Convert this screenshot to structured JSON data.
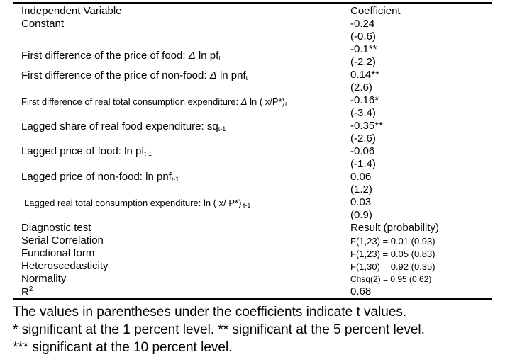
{
  "header": {
    "variable": "Independent Variable",
    "coefficient": "Coefficient"
  },
  "rows": [
    {
      "label": "Constant",
      "coef": "-0.24",
      "t": "(-0.6)"
    },
    {
      "label_pre": "First difference of the price of food: ",
      "op": "Δ",
      "label_mid": " ln pf",
      "sub": "t",
      "coef": "-0.1**",
      "t": "(-2.2)"
    },
    {
      "label_pre": "First difference of the price of non-food: ",
      "op": "Δ",
      "label_mid": "  ln pnf",
      "sub": "t",
      "coef": "0.14**",
      "t": "(2.6)"
    },
    {
      "label_pre": "First difference of real total consumption expenditure: ",
      "op": "Δ",
      "label_mid": "  ln ( x/P*)",
      "sub": "t",
      "coef": "-0.16*",
      "t": "(-3.4)"
    },
    {
      "label_pre": "Lagged share of real food expenditure: sq",
      "sub": "t-1",
      "coef": "-0.35**",
      "t": "(-2.6)"
    },
    {
      "label_pre": "Lagged price of food: ln pf",
      "sub": "t-1",
      "coef": "-0.06",
      "t": "(-1.4)"
    },
    {
      "label_pre": "Lagged price of non-food: ln pnf",
      "sub": "t-1",
      "coef": "0.06",
      "t": "(1.2)"
    },
    {
      "label_pre": "Lagged real total consumption expenditure: ln ( x/ P*)",
      "sub": " t-1",
      "coef": "0.03",
      "t": "(0.9)"
    }
  ],
  "diagnostics": {
    "header": "Diagnostic test",
    "result_header": "Result (probability)",
    "items": [
      {
        "label": "Serial Correlation",
        "result": "F(1,23) = 0.01 (0.93)"
      },
      {
        "label": "Functional form",
        "result": "F(1,23) = 0.05 (0.83)"
      },
      {
        "label": "Heteroscedasticity",
        "result": "F(1,30) = 0.92 (0.35)"
      },
      {
        "label": "Normality",
        "result": "Chsq(2) = 0.95 (0.62)"
      }
    ],
    "r2_base": "R",
    "r2_sup": "2",
    "r2_value": "0.68"
  },
  "notes": [
    "The values in parentheses under the coefficients indicate t values.",
    "* significant at the 1 percent level. ** significant at the 5 percent level.",
    "*** significant at the 10 percent level."
  ]
}
